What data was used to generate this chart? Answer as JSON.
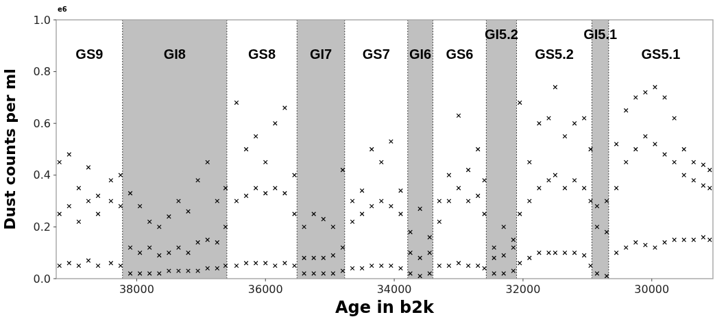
{
  "chart_data": {
    "type": "scatter",
    "xlabel": "Age in b2k",
    "ylabel": "Dust counts per ml",
    "annotations": [
      "e6",
      "GS9",
      "GS8",
      "GS7",
      "GS6",
      "GS5.2",
      "GS5.1"
    ],
    "bands": [
      {
        "axis": "x",
        "from": 38220,
        "to": 36600,
        "label": "GI8",
        "color": "#c0c0c0"
      },
      {
        "axis": "x",
        "from": 35510,
        "to": 34770,
        "label": "GI7",
        "color": "#c0c0c0"
      },
      {
        "axis": "x",
        "from": 33790,
        "to": 33400,
        "label": "GI6",
        "color": "#c0c0c0"
      },
      {
        "axis": "x",
        "from": 32570,
        "to": 32100,
        "label": "GI5.2",
        "color": "#c0c0c0"
      },
      {
        "axis": "x",
        "from": 30930,
        "to": 30670,
        "label": "GI5.1",
        "color": "#c0c0c0"
      }
    ],
    "xlim": [
      39250,
      29050
    ],
    "xticks": [
      38000,
      36000,
      34000,
      32000,
      30000
    ],
    "ylim": [
      0,
      1
    ],
    "yticks": [
      {
        "value": 0,
        "label": "0.0"
      },
      {
        "value": 0.2,
        "label": "0.2"
      },
      {
        "value": 0.4,
        "label": "0.4"
      },
      {
        "value": 0.6,
        "label": "0.6"
      },
      {
        "value": 0.8,
        "label": "0.8"
      },
      {
        "value": 1,
        "label": "1.0"
      }
    ],
    "marker": "cross",
    "series": [
      {
        "color": "#000000",
        "x": [
          39200,
          39200,
          39200,
          39050,
          39050,
          39050,
          38900,
          38900,
          38900,
          38750,
          38750,
          38750,
          38600,
          38600,
          38600,
          38400,
          38400,
          38400,
          38250,
          38250,
          38250,
          38100,
          38100,
          38100,
          37950,
          37950,
          37950,
          37800,
          37800,
          37800,
          37650,
          37650,
          37650,
          37500,
          37500,
          37500,
          37350,
          37350,
          37350,
          37200,
          37200,
          37200,
          37050,
          37050,
          37050,
          36900,
          36900,
          36900,
          36750,
          36750,
          36750,
          36620,
          36620,
          36620,
          36450,
          36450,
          36450,
          36300,
          36300,
          36300,
          36150,
          36150,
          36150,
          36000,
          36000,
          36000,
          35850,
          35850,
          35850,
          35700,
          35700,
          35700,
          35550,
          35550,
          35550,
          35400,
          35400,
          35400,
          35250,
          35250,
          35250,
          35100,
          35100,
          35100,
          34950,
          34950,
          34950,
          34800,
          34800,
          34800,
          34650,
          34650,
          34650,
          34500,
          34500,
          34500,
          34350,
          34350,
          34350,
          34200,
          34200,
          34200,
          34050,
          34050,
          34050,
          33900,
          33900,
          33900,
          33750,
          33750,
          33750,
          33600,
          33600,
          33600,
          33450,
          33450,
          33450,
          33300,
          33300,
          33300,
          33150,
          33150,
          33150,
          33000,
          33000,
          33000,
          32850,
          32850,
          32850,
          32700,
          32700,
          32700,
          32600,
          32600,
          32600,
          32450,
          32450,
          32450,
          32300,
          32300,
          32300,
          32150,
          32150,
          32150,
          32050,
          32050,
          32050,
          31900,
          31900,
          31900,
          31750,
          31750,
          31750,
          31600,
          31600,
          31600,
          31500,
          31500,
          31500,
          31350,
          31350,
          31350,
          31200,
          31200,
          31200,
          31050,
          31050,
          31050,
          30950,
          30950,
          30950,
          30850,
          30850,
          30850,
          30700,
          30700,
          30700,
          30550,
          30550,
          30550,
          30400,
          30400,
          30400,
          30250,
          30250,
          30250,
          30100,
          30100,
          30100,
          29950,
          29950,
          29950,
          29800,
          29800,
          29800,
          29650,
          29650,
          29650,
          29500,
          29500,
          29500,
          29350,
          29350,
          29350,
          29200,
          29200,
          29200,
          29100,
          29100,
          29100
        ],
        "values": [
          0.05,
          0.25,
          0.45,
          0.06,
          0.28,
          0.48,
          0.05,
          0.22,
          0.35,
          0.07,
          0.3,
          0.43,
          0.05,
          0.25,
          0.32,
          0.06,
          0.3,
          0.38,
          0.05,
          0.28,
          0.4,
          0.02,
          0.12,
          0.33,
          0.02,
          0.1,
          0.28,
          0.02,
          0.12,
          0.22,
          0.02,
          0.09,
          0.2,
          0.03,
          0.1,
          0.24,
          0.03,
          0.12,
          0.3,
          0.03,
          0.1,
          0.26,
          0.03,
          0.14,
          0.38,
          0.04,
          0.15,
          0.45,
          0.04,
          0.14,
          0.3,
          0.05,
          0.2,
          0.35,
          0.05,
          0.3,
          0.68,
          0.06,
          0.32,
          0.5,
          0.06,
          0.35,
          0.55,
          0.06,
          0.33,
          0.45,
          0.05,
          0.35,
          0.6,
          0.06,
          0.33,
          0.66,
          0.05,
          0.25,
          0.4,
          0.02,
          0.08,
          0.2,
          0.02,
          0.08,
          0.25,
          0.02,
          0.08,
          0.23,
          0.02,
          0.09,
          0.2,
          0.03,
          0.12,
          0.42,
          0.04,
          0.22,
          0.3,
          0.04,
          0.25,
          0.34,
          0.05,
          0.28,
          0.5,
          0.05,
          0.3,
          0.45,
          0.05,
          0.28,
          0.53,
          0.04,
          0.25,
          0.34,
          0.02,
          0.1,
          0.18,
          0.01,
          0.08,
          0.27,
          0.02,
          0.1,
          0.16,
          0.05,
          0.22,
          0.3,
          0.05,
          0.3,
          0.4,
          0.06,
          0.35,
          0.63,
          0.05,
          0.3,
          0.42,
          0.05,
          0.32,
          0.5,
          0.04,
          0.25,
          0.38,
          0.02,
          0.08,
          0.12,
          0.02,
          0.09,
          0.2,
          0.03,
          0.12,
          0.15,
          0.06,
          0.25,
          0.68,
          0.08,
          0.3,
          0.45,
          0.1,
          0.35,
          0.6,
          0.1,
          0.38,
          0.62,
          0.1,
          0.4,
          0.74,
          0.1,
          0.35,
          0.55,
          0.1,
          0.38,
          0.6,
          0.09,
          0.35,
          0.62,
          0.05,
          0.3,
          0.5,
          0.02,
          0.2,
          0.28,
          0.01,
          0.18,
          0.3,
          0.1,
          0.35,
          0.52,
          0.12,
          0.45,
          0.65,
          0.14,
          0.5,
          0.7,
          0.13,
          0.55,
          0.72,
          0.12,
          0.52,
          0.74,
          0.14,
          0.48,
          0.7,
          0.15,
          0.45,
          0.62,
          0.15,
          0.4,
          0.5,
          0.15,
          0.38,
          0.45,
          0.16,
          0.36,
          0.44,
          0.15,
          0.35,
          0.42
        ]
      }
    ]
  }
}
